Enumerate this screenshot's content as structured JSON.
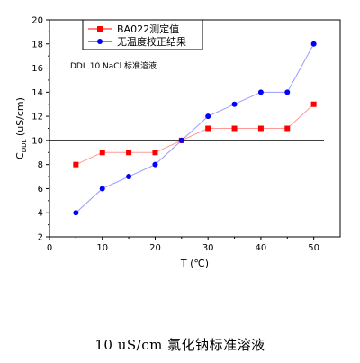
{
  "chart_data": {
    "type": "line",
    "annotation": "DDL 10 NaCl 标准溶液",
    "xlabel": "T (℃)",
    "ylabel_main": "C",
    "ylabel_sub": "DDL",
    "ylabel_unit": " (uS/cm)",
    "xlim": [
      0,
      55
    ],
    "ylim": [
      2,
      20
    ],
    "xticks": [
      0,
      10,
      20,
      30,
      40,
      50
    ],
    "yticks": [
      2,
      4,
      6,
      8,
      10,
      12,
      14,
      16,
      18,
      20
    ],
    "x": [
      5,
      10,
      15,
      20,
      25,
      30,
      35,
      40,
      45,
      50
    ],
    "reference_line": 10,
    "legend_position": "top-left",
    "grid": false,
    "series": [
      {
        "name": "BA022测定值",
        "marker": "square",
        "color": "#ff0000",
        "line_color": "#ff9a9a",
        "values": [
          8,
          9,
          9,
          9,
          10,
          11,
          11,
          11,
          11,
          13
        ]
      },
      {
        "name": "无温度校正结果",
        "marker": "circle",
        "color": "#0000ff",
        "line_color": "#9a9aff",
        "values": [
          4,
          6,
          7,
          8,
          10,
          12,
          13,
          14,
          14,
          18
        ]
      }
    ]
  },
  "caption": "10 uS/cm 氯化钠标准溶液"
}
